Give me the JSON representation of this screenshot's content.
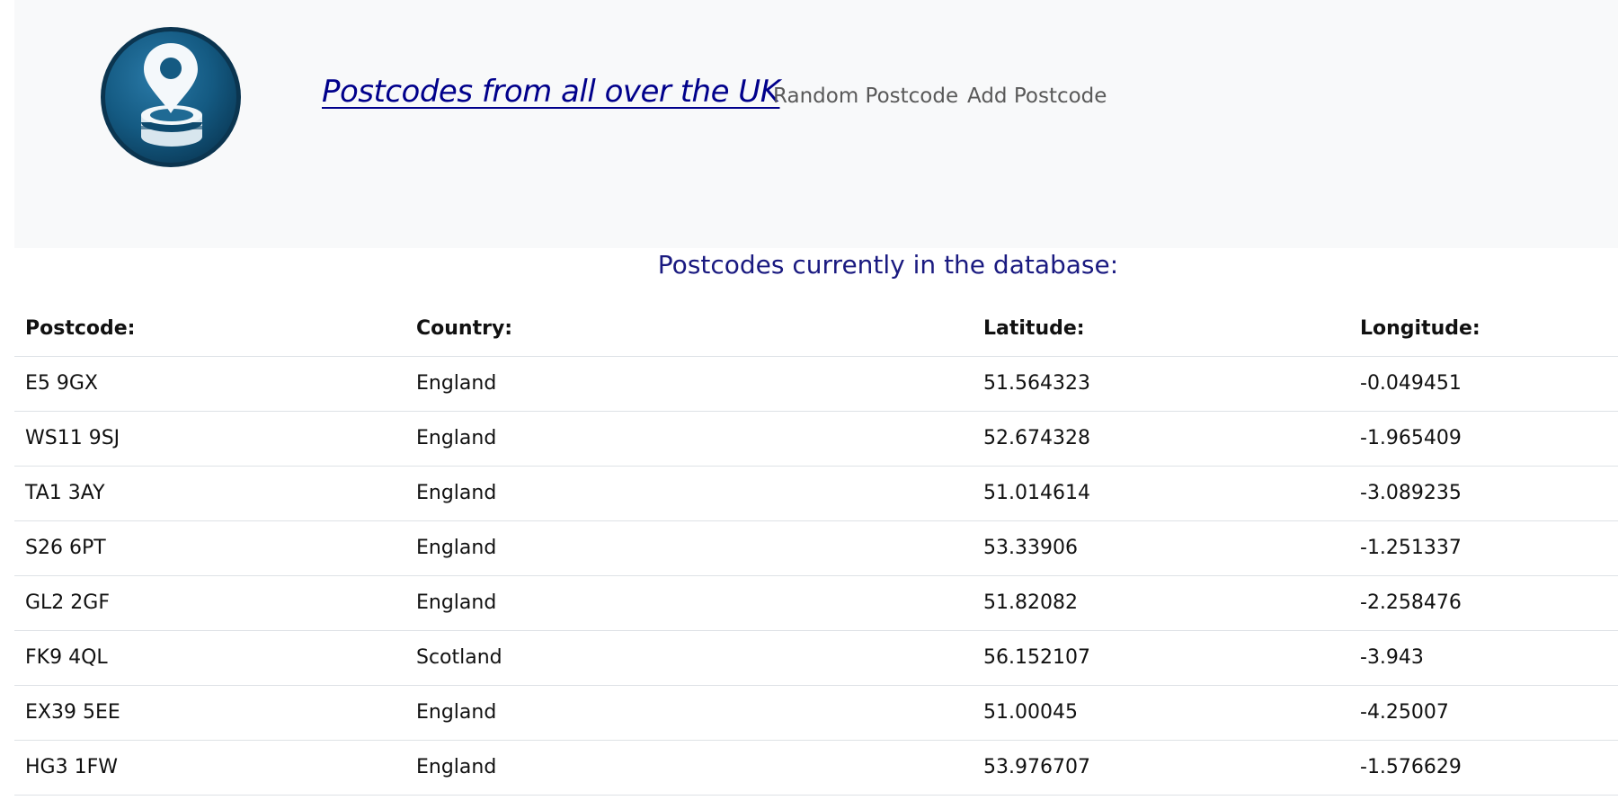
{
  "header": {
    "brand": "Postcodes from all over the UK",
    "nav": {
      "random": "Random Postcode",
      "add": "Add Postcode"
    },
    "logo_icon": "map-pin-database-icon"
  },
  "main": {
    "title": "Postcodes currently in the database:",
    "columns": [
      "Postcode:",
      "Country:",
      "Latitude:",
      "Longitude:"
    ],
    "rows": [
      [
        "E5 9GX",
        "England",
        "51.564323",
        "-0.049451"
      ],
      [
        "WS11 9SJ",
        "England",
        "52.674328",
        "-1.965409"
      ],
      [
        "TA1 3AY",
        "England",
        "51.014614",
        "-3.089235"
      ],
      [
        "S26 6PT",
        "England",
        "53.33906",
        "-1.251337"
      ],
      [
        "GL2 2GF",
        "England",
        "51.82082",
        "-2.258476"
      ],
      [
        "FK9 4QL",
        "Scotland",
        "56.152107",
        "-3.943"
      ],
      [
        "EX39 5EE",
        "England",
        "51.00045",
        "-4.25007"
      ],
      [
        "HG3 1FW",
        "England",
        "53.976707",
        "-1.576629"
      ]
    ]
  },
  "colors": {
    "header_bg": "#f8f9fa",
    "brand": "#00008b",
    "title": "#1a1a80",
    "nav": "#595959",
    "logo_dark": "#0b3d5c",
    "logo_light": "#2a7aa8"
  }
}
